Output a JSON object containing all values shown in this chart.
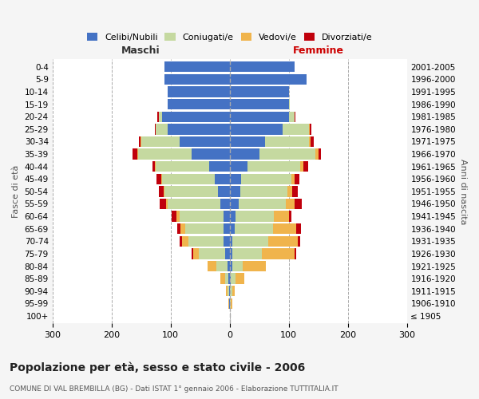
{
  "age_groups": [
    "100+",
    "95-99",
    "90-94",
    "85-89",
    "80-84",
    "75-79",
    "70-74",
    "65-69",
    "60-64",
    "55-59",
    "50-54",
    "45-49",
    "40-44",
    "35-39",
    "30-34",
    "25-29",
    "20-24",
    "15-19",
    "10-14",
    "5-9",
    "0-4"
  ],
  "birth_years": [
    "≤ 1905",
    "1906-1910",
    "1911-1915",
    "1916-1920",
    "1921-1925",
    "1926-1930",
    "1931-1935",
    "1936-1940",
    "1941-1945",
    "1946-1950",
    "1951-1955",
    "1956-1960",
    "1961-1965",
    "1966-1970",
    "1971-1975",
    "1976-1980",
    "1981-1985",
    "1986-1990",
    "1991-1995",
    "1996-2000",
    "2001-2005"
  ],
  "males": {
    "celibi": [
      0,
      1,
      1,
      2,
      4,
      7,
      10,
      10,
      10,
      15,
      20,
      25,
      35,
      65,
      85,
      105,
      115,
      105,
      105,
      110,
      110
    ],
    "coniugati": [
      0,
      0,
      2,
      5,
      18,
      45,
      60,
      65,
      75,
      90,
      90,
      90,
      90,
      90,
      65,
      20,
      5,
      0,
      0,
      0,
      0
    ],
    "vedovi": [
      0,
      1,
      3,
      8,
      15,
      10,
      10,
      8,
      5,
      3,
      2,
      1,
      1,
      1,
      1,
      0,
      0,
      0,
      0,
      0,
      0
    ],
    "divorziati": [
      0,
      0,
      0,
      0,
      0,
      3,
      5,
      5,
      8,
      10,
      8,
      8,
      5,
      8,
      3,
      2,
      2,
      0,
      0,
      0,
      0
    ]
  },
  "females": {
    "nubili": [
      0,
      1,
      1,
      2,
      4,
      5,
      5,
      8,
      10,
      15,
      18,
      20,
      30,
      50,
      60,
      90,
      100,
      100,
      100,
      130,
      110
    ],
    "coniugate": [
      0,
      1,
      3,
      8,
      18,
      50,
      60,
      65,
      65,
      80,
      80,
      85,
      90,
      95,
      75,
      45,
      10,
      2,
      0,
      0,
      0
    ],
    "vedove": [
      0,
      2,
      5,
      15,
      40,
      55,
      50,
      40,
      25,
      15,
      8,
      5,
      5,
      5,
      2,
      1,
      0,
      0,
      0,
      0,
      0
    ],
    "divorziate": [
      0,
      0,
      0,
      0,
      0,
      3,
      5,
      8,
      5,
      12,
      10,
      8,
      8,
      5,
      5,
      3,
      1,
      0,
      0,
      0,
      0
    ]
  },
  "color_celibi": "#4472C4",
  "color_coniugati": "#C5D9A0",
  "color_vedovi": "#F0B44C",
  "color_divorziati": "#C0000C",
  "title": "Popolazione per età, sesso e stato civile - 2006",
  "subtitle": "COMUNE DI VAL BREMBILLA (BG) - Dati ISTAT 1° gennaio 2006 - Elaborazione TUTTITALIA.IT",
  "xlabel_left": "Maschi",
  "xlabel_right": "Femmine",
  "ylabel_left": "Fasce di età",
  "ylabel_right": "Anni di nascita",
  "xlim": 300,
  "bg_color": "#f5f5f5",
  "plot_bg_color": "#ffffff"
}
